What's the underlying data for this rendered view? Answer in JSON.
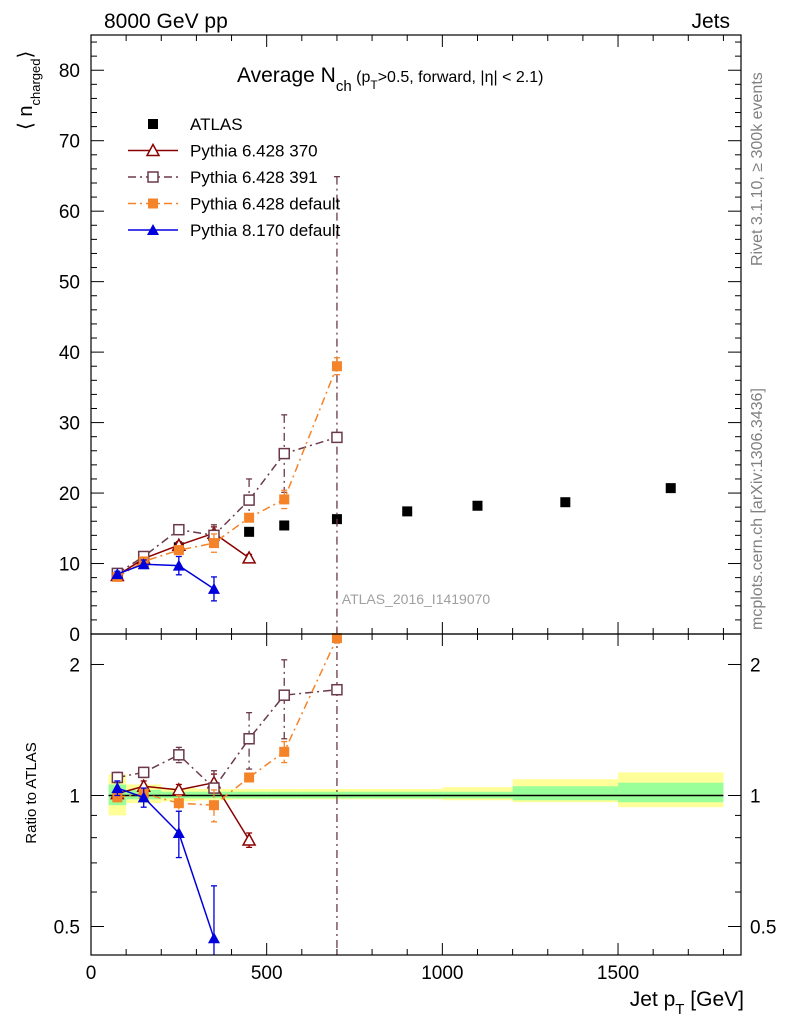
{
  "header": {
    "left": "8000 GeV pp",
    "right": "Jets",
    "side_top": "Rivet 3.1.10, ≥ 300k events",
    "side_bottom": "mcplots.cern.ch [arXiv:1306.3436]",
    "watermark": "ATLAS_2016_I1419070"
  },
  "chart_data": [
    {
      "type": "line",
      "title_main": "Average N",
      "title_sub": "ch",
      "title_tail": " (p",
      "title_tail_sub": "T",
      "title_tail_rest": ">0.5, forward, |η| < 2.1)",
      "ylabel": "⟨ n",
      "ylabel_sub": "charged",
      "ylabel_end": "⟩",
      "xlim": [
        0,
        1850
      ],
      "ylim": [
        0,
        85
      ],
      "yticks": [
        0,
        10,
        20,
        30,
        40,
        50,
        60,
        70,
        80
      ],
      "series": [
        {
          "name": "ATLAS",
          "color": "#000000",
          "marker": "square-filled",
          "line": "none",
          "x": [
            75,
            150,
            250,
            350,
            450,
            550,
            700,
            900,
            1100,
            1350,
            1650
          ],
          "y": [
            8.2,
            10.2,
            12.3,
            13.5,
            14.5,
            15.4,
            16.3,
            17.4,
            18.2,
            18.7,
            20.7
          ],
          "err": [
            0.2,
            0.2,
            0.3,
            0.3,
            0.3,
            0.3,
            0.3,
            0.3,
            0.3,
            0.3,
            0.4
          ]
        },
        {
          "name": "Pythia 6.428 370",
          "color": "#8b0000",
          "marker": "triangle-open",
          "line": "solid",
          "x": [
            75,
            150,
            250,
            350,
            450
          ],
          "y": [
            8.3,
            10.7,
            12.6,
            14.3,
            10.8
          ],
          "err": [
            0.3,
            0.4,
            0.5,
            0.9,
            0.5
          ]
        },
        {
          "name": "Pythia 6.428 391",
          "color": "#6b3a4a",
          "marker": "square-open",
          "line": "dashdot",
          "x": [
            75,
            150,
            250,
            350,
            450,
            550,
            700
          ],
          "y": [
            8.6,
            11.0,
            14.8,
            14.0,
            19.0,
            25.6,
            27.9
          ],
          "err": [
            0.3,
            0.4,
            0.5,
            1.5,
            3.0,
            5.5,
            37
          ]
        },
        {
          "name": "Pythia 6.428 default",
          "color": "#f5832a",
          "marker": "square-filled",
          "line": "dashdot",
          "x": [
            75,
            150,
            250,
            350,
            450,
            550,
            700
          ],
          "y": [
            8.1,
            10.3,
            11.9,
            12.9,
            16.5,
            19.1,
            38.0
          ],
          "err": [
            0.3,
            0.4,
            0.6,
            1.3,
            0,
            1.3,
            1.2
          ]
        },
        {
          "name": "Pythia 8.170 default",
          "color": "#0000dd",
          "marker": "triangle-filled",
          "line": "solid",
          "x": [
            75,
            150,
            250,
            350
          ],
          "y": [
            8.5,
            9.9,
            9.7,
            6.4
          ],
          "err": [
            0.4,
            0.6,
            1.3,
            1.7
          ]
        }
      ]
    },
    {
      "type": "line",
      "ylabel": "Ratio to ATLAS",
      "xlabel": "Jet p",
      "xlabel_sub": "T",
      "xlabel_unit": " [GeV]",
      "xlim": [
        0,
        1850
      ],
      "ylim": [
        0.43,
        2.35
      ],
      "yscale": "log",
      "yticks": [
        0.5,
        1,
        2
      ],
      "xticks": [
        0,
        500,
        1000,
        1500
      ],
      "bands": {
        "edges": [
          50,
          100,
          200,
          300,
          400,
          500,
          600,
          800,
          1000,
          1200,
          1500,
          1800
        ],
        "yellow_lo": [
          0.9,
          0.96,
          0.97,
          0.975,
          0.98,
          0.98,
          0.98,
          0.98,
          0.975,
          0.965,
          0.94
        ],
        "yellow_hi": [
          1.12,
          1.06,
          1.04,
          1.035,
          1.035,
          1.035,
          1.035,
          1.035,
          1.045,
          1.09,
          1.13
        ],
        "green_lo": [
          0.95,
          0.98,
          0.985,
          0.985,
          0.985,
          0.985,
          0.985,
          0.985,
          0.985,
          0.975,
          0.965
        ],
        "green_hi": [
          1.06,
          1.03,
          1.02,
          1.02,
          1.02,
          1.02,
          1.02,
          1.02,
          1.02,
          1.05,
          1.07
        ]
      },
      "series": [
        {
          "name": "Pythia 6.428 370",
          "color": "#8b0000",
          "marker": "triangle-open",
          "line": "solid",
          "x": [
            75,
            150,
            250,
            350,
            450
          ],
          "y": [
            1.01,
            1.05,
            1.03,
            1.07,
            0.79
          ],
          "err": [
            0.02,
            0.03,
            0.03,
            0.05,
            0.03
          ]
        },
        {
          "name": "Pythia 6.428 391",
          "color": "#6b3a4a",
          "marker": "square-open",
          "line": "dashdot",
          "x": [
            75,
            150,
            250,
            350,
            450,
            550,
            700
          ],
          "y": [
            1.1,
            1.13,
            1.24,
            1.04,
            1.35,
            1.7,
            1.75
          ],
          "err": [
            0.03,
            0.03,
            0.05,
            0.1,
            0.2,
            0.35,
            3.0
          ]
        },
        {
          "name": "Pythia 6.428 default",
          "color": "#f5832a",
          "marker": "square-filled",
          "line": "dashdot",
          "x": [
            75,
            150,
            250,
            350,
            450,
            550,
            700
          ],
          "y": [
            0.99,
            1.01,
            0.96,
            0.95,
            1.1,
            1.26,
            2.3
          ],
          "err": [
            0.02,
            0.03,
            0.04,
            0.08,
            0,
            0.07,
            0.06
          ]
        },
        {
          "name": "Pythia 8.170 default",
          "color": "#0000dd",
          "marker": "triangle-filled",
          "line": "solid",
          "x": [
            75,
            150,
            250,
            350
          ],
          "y": [
            1.04,
            0.99,
            0.82,
            0.47
          ],
          "err": [
            0.04,
            0.05,
            0.1,
            0.15
          ]
        }
      ]
    }
  ]
}
